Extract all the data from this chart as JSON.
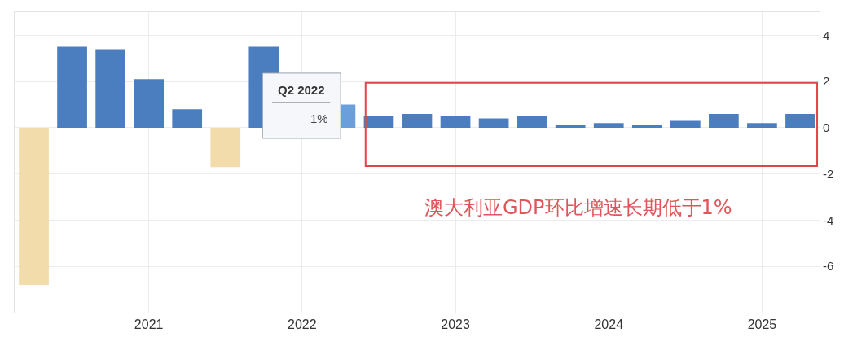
{
  "chart_data": {
    "type": "bar",
    "categories": [
      null,
      null,
      null,
      "2021",
      null,
      null,
      null,
      "2022",
      null,
      null,
      null,
      "2023",
      null,
      null,
      null,
      "2024",
      null,
      null,
      null,
      "2025",
      null
    ],
    "values": [
      -6.8,
      3.5,
      3.4,
      2.1,
      0.8,
      -1.7,
      3.5,
      null,
      1,
      0.5,
      0.6,
      0.5,
      0.4,
      0.5,
      0.1,
      0.2,
      0.1,
      0.3,
      0.6,
      0.2,
      0.6
    ],
    "colors": [
      "#f3dcac",
      "#4a7ebf",
      "#4a7ebf",
      "#4a7ebf",
      "#4a7ebf",
      "#f3dcac",
      "#4a7ebf",
      "#4a7ebf",
      "#6a9fdb",
      "#4a7ebf",
      "#4a7ebf",
      "#4a7ebf",
      "#4a7ebf",
      "#4a7ebf",
      "#4a7ebf",
      "#4a7ebf",
      "#4a7ebf",
      "#4a7ebf",
      "#4a7ebf",
      "#4a7ebf",
      "#4a7ebf"
    ],
    "ylim": [
      -8,
      5
    ],
    "yticks": [
      4,
      2,
      0,
      -2,
      -4,
      -6
    ],
    "grid": true,
    "annotations": [
      "Q2 2022",
      "1%",
      "澳大利亚GDP环比增速长期低于1%"
    ]
  }
}
